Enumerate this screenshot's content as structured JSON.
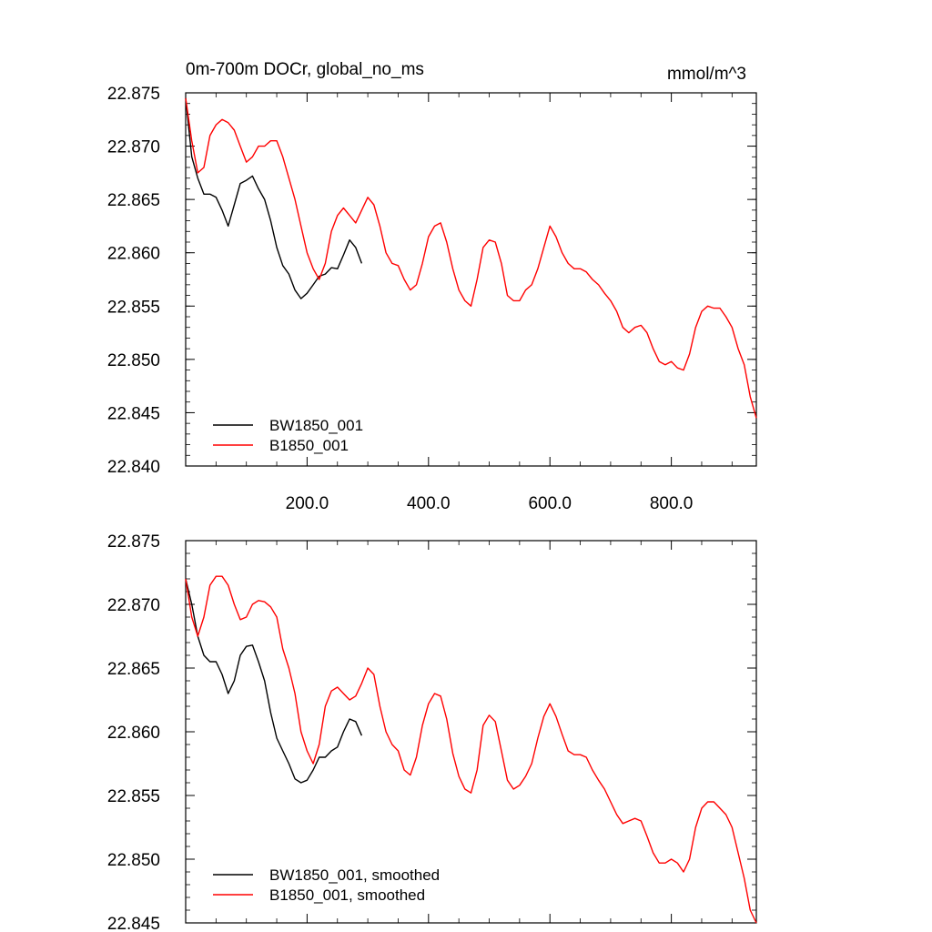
{
  "chart_data": [
    {
      "type": "line",
      "title": "0m-700m DOCr, global_no_ms",
      "units": "mmol/m^3",
      "xlim": [
        0,
        940
      ],
      "ylim": [
        22.84,
        22.875
      ],
      "x_ticks": [
        200,
        400,
        600,
        800
      ],
      "x_tick_labels": [
        "200.0",
        "400.0",
        "600.0",
        "800.0"
      ],
      "y_ticks": [
        22.84,
        22.845,
        22.85,
        22.855,
        22.86,
        22.865,
        22.87,
        22.875
      ],
      "y_tick_labels": [
        "22.840",
        "22.845",
        "22.850",
        "22.855",
        "22.860",
        "22.865",
        "22.870",
        "22.875"
      ],
      "legend_position": "bottom-left",
      "series": [
        {
          "name": "BW1850_001",
          "color": "#000000",
          "x": [
            0,
            10,
            20,
            30,
            40,
            50,
            60,
            70,
            80,
            90,
            100,
            110,
            120,
            130,
            140,
            150,
            160,
            170,
            180,
            190,
            200,
            210,
            220,
            230,
            240,
            250,
            260,
            270,
            280,
            290
          ],
          "y": [
            22.8745,
            22.869,
            22.867,
            22.8655,
            22.8655,
            22.8652,
            22.864,
            22.8625,
            22.8645,
            22.8665,
            22.8668,
            22.8672,
            22.866,
            22.865,
            22.863,
            22.8605,
            22.8588,
            22.858,
            22.8565,
            22.8557,
            22.8562,
            22.857,
            22.8578,
            22.858,
            22.8586,
            22.8585,
            22.8598,
            22.8612,
            22.8605,
            22.859
          ]
        },
        {
          "name": "B1850_001",
          "color": "#ff0000",
          "x": [
            0,
            10,
            20,
            30,
            40,
            50,
            60,
            70,
            80,
            90,
            100,
            110,
            120,
            130,
            140,
            150,
            160,
            170,
            180,
            190,
            200,
            210,
            220,
            230,
            240,
            250,
            260,
            270,
            280,
            290,
            300,
            310,
            320,
            330,
            340,
            350,
            360,
            370,
            380,
            390,
            400,
            410,
            420,
            430,
            440,
            450,
            460,
            470,
            480,
            490,
            500,
            510,
            520,
            530,
            540,
            550,
            560,
            570,
            580,
            590,
            600,
            610,
            620,
            630,
            640,
            650,
            660,
            670,
            680,
            690,
            700,
            710,
            720,
            730,
            740,
            750,
            760,
            770,
            780,
            790,
            800,
            810,
            820,
            830,
            840,
            850,
            860,
            870,
            880,
            890,
            900,
            910,
            920,
            930,
            940
          ],
          "y": [
            22.8745,
            22.8705,
            22.8675,
            22.868,
            22.871,
            22.872,
            22.8725,
            22.8722,
            22.8715,
            22.87,
            22.8685,
            22.869,
            22.87,
            22.87,
            22.8705,
            22.8705,
            22.869,
            22.867,
            22.865,
            22.8625,
            22.86,
            22.8585,
            22.8575,
            22.859,
            22.862,
            22.8635,
            22.8642,
            22.8635,
            22.8628,
            22.864,
            22.8652,
            22.8645,
            22.8625,
            22.86,
            22.859,
            22.8588,
            22.8575,
            22.8565,
            22.857,
            22.859,
            22.8615,
            22.8625,
            22.8628,
            22.861,
            22.8585,
            22.8565,
            22.8555,
            22.855,
            22.8575,
            22.8605,
            22.8612,
            22.861,
            22.859,
            22.856,
            22.8555,
            22.8555,
            22.8565,
            22.857,
            22.8585,
            22.8605,
            22.8625,
            22.8615,
            22.86,
            22.859,
            22.8585,
            22.8585,
            22.8582,
            22.8575,
            22.857,
            22.8562,
            22.8555,
            22.8545,
            22.853,
            22.8525,
            22.853,
            22.8532,
            22.8525,
            22.851,
            22.8498,
            22.8495,
            22.8498,
            22.8492,
            22.849,
            22.8505,
            22.853,
            22.8545,
            22.855,
            22.8548,
            22.8548,
            22.854,
            22.853,
            22.851,
            22.8495,
            22.8465,
            22.8445
          ]
        }
      ]
    },
    {
      "type": "line",
      "title": "",
      "xlim": [
        0,
        940
      ],
      "ylim": [
        22.845,
        22.875
      ],
      "y_ticks": [
        22.845,
        22.85,
        22.855,
        22.86,
        22.865,
        22.87,
        22.875
      ],
      "y_tick_labels": [
        "22.845",
        "22.850",
        "22.855",
        "22.860",
        "22.865",
        "22.870",
        "22.875"
      ],
      "legend_position": "bottom-left",
      "series": [
        {
          "name": "BW1850_001, smoothed",
          "color": "#000000",
          "x": [
            0,
            10,
            20,
            30,
            40,
            50,
            60,
            70,
            80,
            90,
            100,
            110,
            120,
            130,
            140,
            150,
            160,
            170,
            180,
            190,
            200,
            210,
            220,
            230,
            240,
            250,
            260,
            270,
            280,
            290
          ],
          "y": [
            22.872,
            22.87,
            22.8675,
            22.866,
            22.8655,
            22.8655,
            22.8645,
            22.863,
            22.864,
            22.866,
            22.8667,
            22.8668,
            22.8655,
            22.864,
            22.8615,
            22.8595,
            22.8585,
            22.8575,
            22.8563,
            22.856,
            22.8562,
            22.857,
            22.858,
            22.858,
            22.8585,
            22.8588,
            22.86,
            22.861,
            22.8608,
            22.8597
          ]
        },
        {
          "name": "B1850_001, smoothed",
          "color": "#ff0000",
          "x": [
            0,
            10,
            20,
            30,
            40,
            50,
            60,
            70,
            80,
            90,
            100,
            110,
            120,
            130,
            140,
            150,
            160,
            170,
            180,
            190,
            200,
            210,
            220,
            230,
            240,
            250,
            260,
            270,
            280,
            290,
            300,
            310,
            320,
            330,
            340,
            350,
            360,
            370,
            380,
            390,
            400,
            410,
            420,
            430,
            440,
            450,
            460,
            470,
            480,
            490,
            500,
            510,
            520,
            530,
            540,
            550,
            560,
            570,
            580,
            590,
            600,
            610,
            620,
            630,
            640,
            650,
            660,
            670,
            680,
            690,
            700,
            710,
            720,
            730,
            740,
            750,
            760,
            770,
            780,
            790,
            800,
            810,
            820,
            830,
            840,
            850,
            860,
            870,
            880,
            890,
            900,
            910,
            920,
            930,
            940
          ],
          "y": [
            22.872,
            22.869,
            22.8675,
            22.869,
            22.8715,
            22.8722,
            22.8722,
            22.8715,
            22.87,
            22.8688,
            22.869,
            22.87,
            22.8703,
            22.8702,
            22.8698,
            22.869,
            22.8665,
            22.865,
            22.863,
            22.86,
            22.8585,
            22.8575,
            22.859,
            22.862,
            22.8632,
            22.8635,
            22.863,
            22.8625,
            22.8628,
            22.8638,
            22.865,
            22.8645,
            22.862,
            22.86,
            22.859,
            22.8585,
            22.857,
            22.8566,
            22.858,
            22.8605,
            22.8622,
            22.863,
            22.8628,
            22.861,
            22.8583,
            22.8565,
            22.8555,
            22.8552,
            22.857,
            22.8605,
            22.8613,
            22.8608,
            22.8585,
            22.8562,
            22.8555,
            22.8558,
            22.8565,
            22.8575,
            22.8595,
            22.8612,
            22.8622,
            22.8612,
            22.8598,
            22.8585,
            22.8582,
            22.8582,
            22.858,
            22.857,
            22.8562,
            22.8555,
            22.8545,
            22.8535,
            22.8528,
            22.853,
            22.8532,
            22.853,
            22.8518,
            22.8505,
            22.8497,
            22.8497,
            22.85,
            22.8497,
            22.849,
            22.85,
            22.8525,
            22.854,
            22.8545,
            22.8545,
            22.854,
            22.8535,
            22.8525,
            22.8505,
            22.8485,
            22.846,
            22.845
          ]
        }
      ]
    }
  ]
}
